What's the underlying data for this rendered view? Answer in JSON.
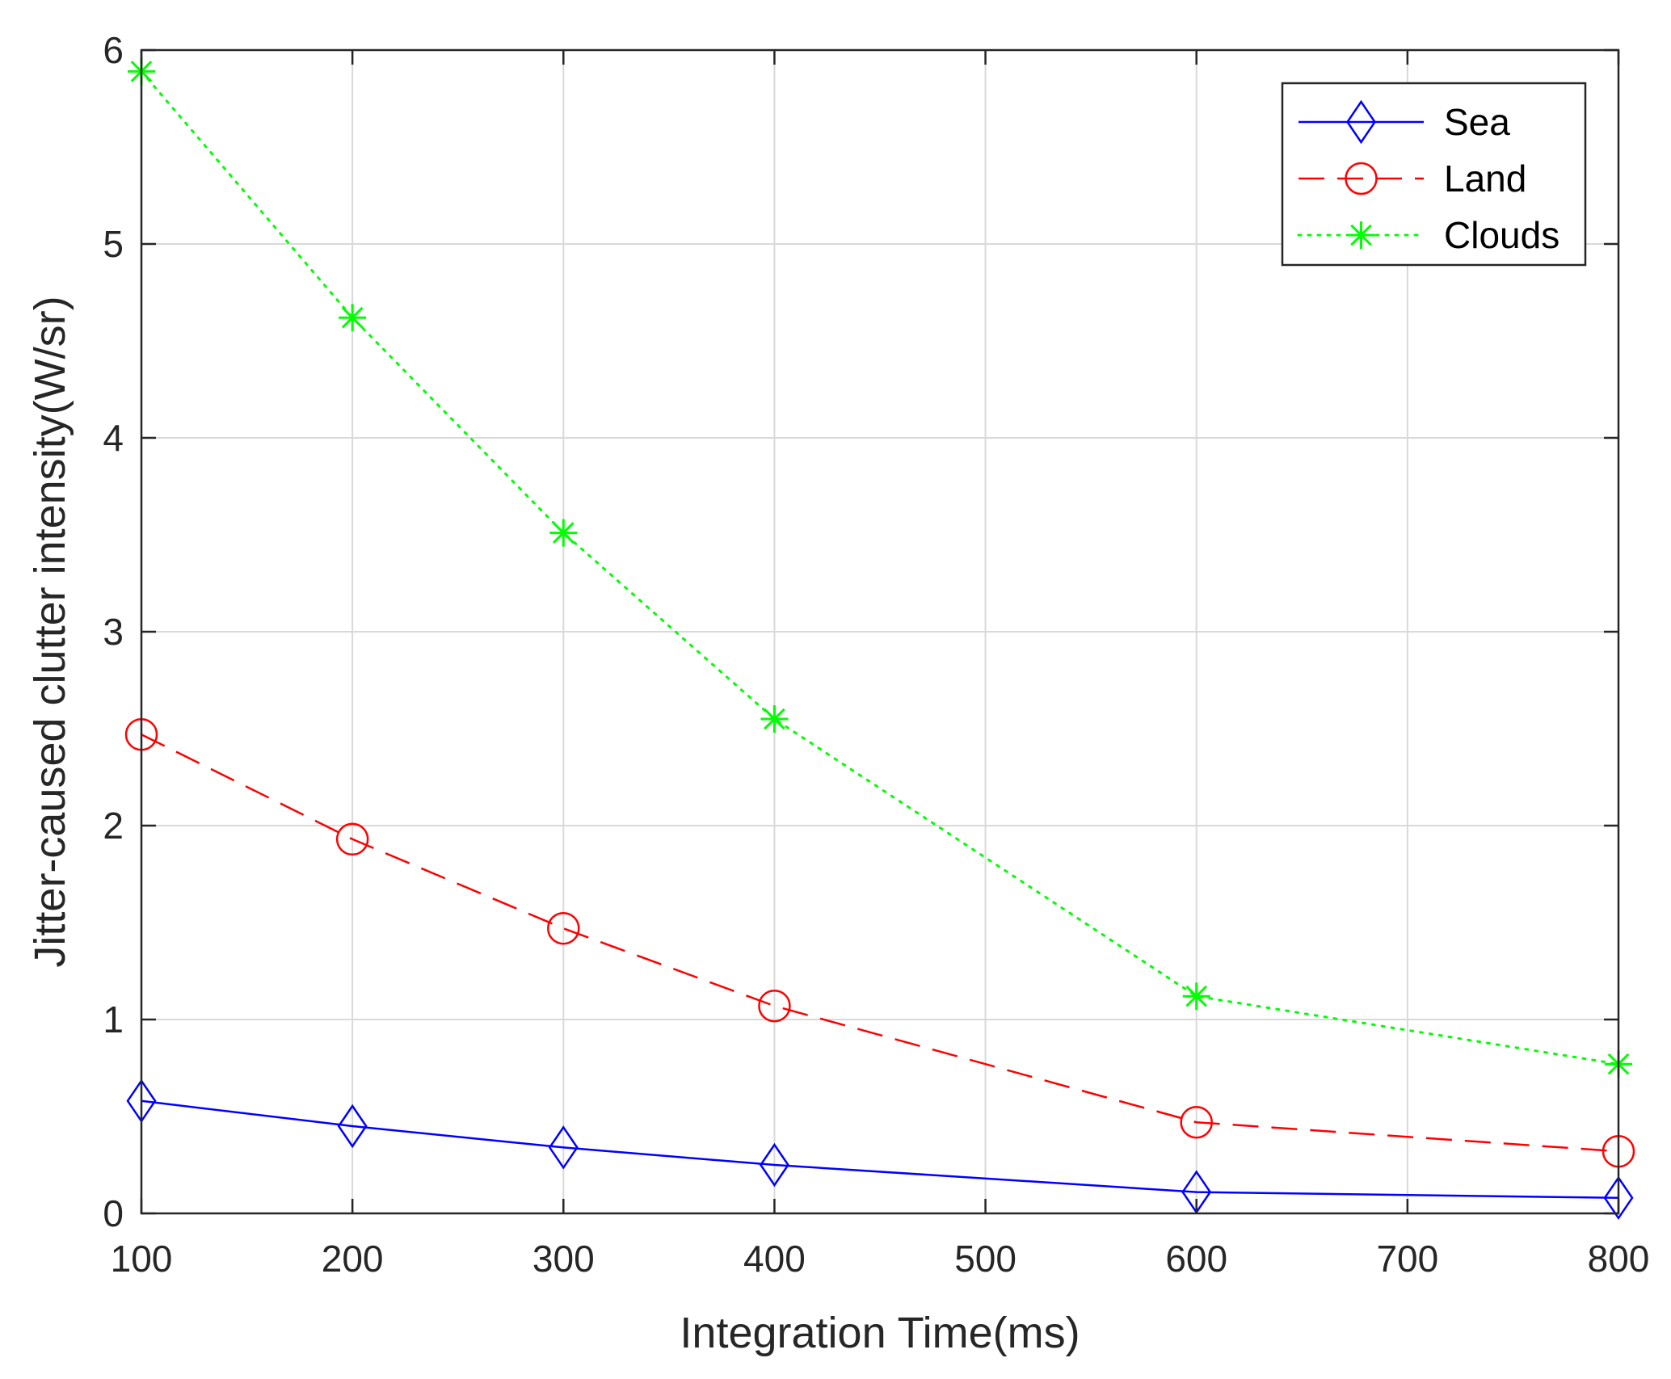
{
  "chart_data": {
    "type": "line",
    "title": "",
    "xlabel": "Integration Time(ms)",
    "ylabel": "Jitter-caused clutter intensity(W/sr)",
    "xlim": [
      100,
      800
    ],
    "ylim": [
      0,
      6
    ],
    "xticks": [
      100,
      200,
      300,
      400,
      500,
      600,
      700,
      800
    ],
    "yticks": [
      0,
      1,
      2,
      3,
      4,
      5,
      6
    ],
    "grid": true,
    "legend_position": "top-right",
    "x": [
      100,
      200,
      300,
      400,
      600,
      800
    ],
    "series": [
      {
        "name": "Sea",
        "values": [
          0.58,
          0.45,
          0.34,
          0.25,
          0.11,
          0.08
        ],
        "color": "#0000ff",
        "line_style": "solid",
        "marker": "diamond"
      },
      {
        "name": "Land",
        "values": [
          2.47,
          1.93,
          1.47,
          1.07,
          0.47,
          0.32
        ],
        "color": "#ff0000",
        "line_style": "dashed",
        "marker": "circle"
      },
      {
        "name": "Clouds",
        "values": [
          5.89,
          4.62,
          3.51,
          2.55,
          1.12,
          0.77
        ],
        "color": "#00ff00",
        "line_style": "dotted",
        "marker": "asterisk"
      }
    ]
  }
}
